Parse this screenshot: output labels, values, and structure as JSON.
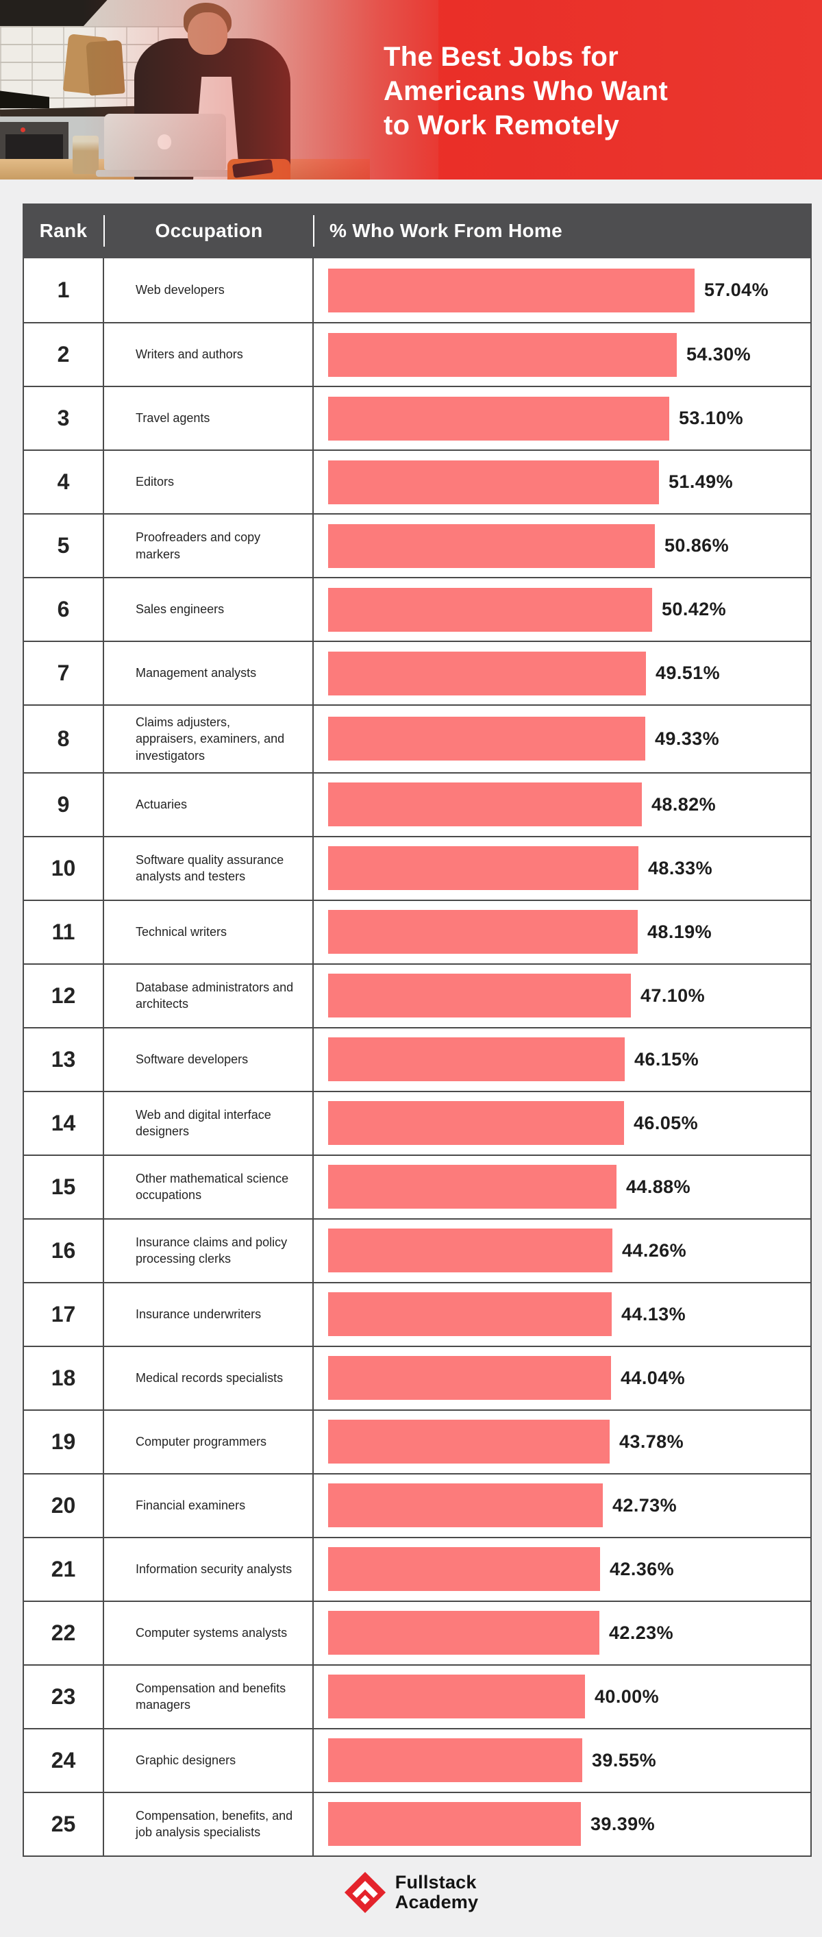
{
  "header": {
    "title_lines": [
      "The Best Jobs for",
      "Americans Who Want",
      "to Work Remotely"
    ]
  },
  "chart_data": {
    "type": "bar",
    "orientation": "horizontal",
    "title": "The Best Jobs for Americans Who Want to Work Remotely",
    "columns": [
      "Rank",
      "Occupation",
      "% Who Work From Home"
    ],
    "value_unit": "percent",
    "xlim": [
      0,
      60
    ],
    "ranks": [
      "1",
      "2",
      "3",
      "4",
      "5",
      "6",
      "7",
      "8",
      "9",
      "10",
      "11",
      "12",
      "13",
      "14",
      "15",
      "16",
      "17",
      "18",
      "19",
      "20",
      "21",
      "22",
      "23",
      "24",
      "25"
    ],
    "categories": [
      "Web developers",
      "Writers and authors",
      "Travel agents",
      "Editors",
      "Proofreaders and copy markers",
      "Sales engineers",
      "Management analysts",
      "Claims adjusters, appraisers, examiners, and investigators",
      "Actuaries",
      "Software quality assurance analysts and testers",
      "Technical writers",
      "Database administrators and architects",
      "Software developers",
      "Web and digital interface designers",
      "Other mathematical science occupations",
      "Insurance claims and policy processing clerks",
      "Insurance underwriters",
      "Medical records specialists",
      "Computer programmers",
      "Financial examiners",
      "Information security analysts",
      "Computer systems analysts",
      "Compensation and benefits managers",
      "Graphic designers",
      "Compensation, benefits, and job analysis specialists"
    ],
    "values": [
      57.04,
      54.3,
      53.1,
      51.49,
      50.86,
      50.42,
      49.51,
      49.33,
      48.82,
      48.33,
      48.19,
      47.1,
      46.15,
      46.05,
      44.88,
      44.26,
      44.13,
      44.04,
      43.78,
      42.73,
      42.36,
      42.23,
      40.0,
      39.55,
      39.39
    ],
    "labels": [
      "57.04%",
      "54.30%",
      "53.10%",
      "51.49%",
      "50.86%",
      "50.42%",
      "49.51%",
      "49.33%",
      "48.82%",
      "48.33%",
      "48.19%",
      "47.10%",
      "46.15%",
      "46.05%",
      "44.88%",
      "44.26%",
      "44.13%",
      "44.04%",
      "43.78%",
      "42.73%",
      "42.36%",
      "42.23%",
      "40.00%",
      "39.55%",
      "39.39%"
    ]
  },
  "footer": {
    "logo_line1": "Fullstack",
    "logo_line2": "Academy",
    "logo_icon": "fullstack-academy-diamond-icon"
  },
  "colors": {
    "bar": "#FC7B7B",
    "table_header_bg": "#4E4E50",
    "grid_line": "#4a4a4a",
    "accent_red": "#E93129",
    "logo_red": "#E4232B",
    "page_bg": "#EFEFF0",
    "text_dark": "#1D1D1D"
  }
}
